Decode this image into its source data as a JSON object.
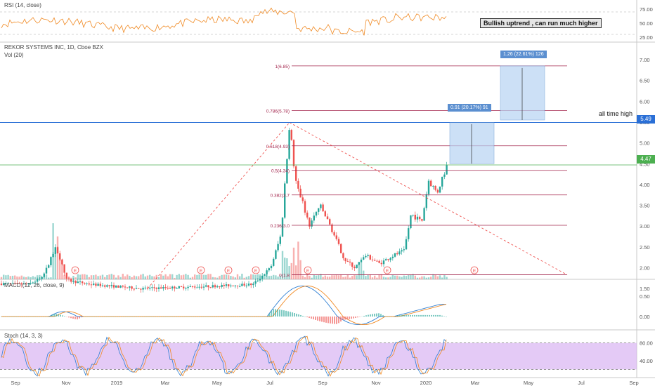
{
  "chart_data": {
    "type": "candlestick",
    "colors": {
      "up": "#26a69a",
      "down": "#ef5350",
      "rsi": "#f08a24",
      "macd": "#2f7fd3",
      "signal": "#f08a24",
      "stoch_k": "#2f7fd3",
      "stoch_d": "#f08a24",
      "fib": "#a3264d",
      "ath": "#2a6fd6",
      "last": "#4caf50",
      "band": "#d9b3f2"
    },
    "price_axis": {
      "ticks": [
        "7.00",
        "6.50",
        "6.00",
        "5.50",
        "5.00",
        "4.50",
        "4.00",
        "3.50",
        "3.00",
        "2.50",
        "2.00",
        "1.50"
      ]
    },
    "rsi_axis": {
      "ticks": [
        "75.00",
        "50.00",
        "25.00"
      ]
    },
    "macd_axis": {
      "ticks": [
        "0.50",
        "0.00"
      ]
    },
    "stoch_axis": {
      "ticks": [
        "80.00",
        "40.00"
      ]
    },
    "time_axis": {
      "ticks": [
        "Sep",
        "Nov",
        "2019",
        "Mar",
        "May",
        "Jul",
        "Sep",
        "Nov",
        "2020",
        "Mar",
        "May",
        "Jul",
        "Sep"
      ]
    },
    "panes": {
      "rsi_title": "RSI (14, close)",
      "price_title": "REKOR SYSTEMS INC, 1D, Cboe BZX",
      "vol_title": "Vol (20)",
      "macd_title": "MACD (12, 26, close, 9)",
      "stoch_title": "Stoch (14, 3, 3)"
    },
    "fib_levels": [
      {
        "label": "1(6.85)",
        "value": 6.85
      },
      {
        "label": "0.786(5.78)",
        "value": 5.78
      },
      {
        "label": "0.618(4.93)",
        "value": 4.93
      },
      {
        "label": "0.5(4.34)",
        "value": 4.34
      },
      {
        "label": "0.382(3.7",
        "value": 3.75
      },
      {
        "label": "0.236(3.0",
        "value": 3.02
      },
      {
        "label": "0(1.8",
        "value": 1.83
      }
    ],
    "annotations": {
      "note": "Bullish uptrend , can run much higher",
      "ath_text": "all time high",
      "ath_value": "5.49",
      "last_value": "4.47",
      "proj1": "0.91 (20.17%) 91",
      "proj2": "1.26 (22.61%) 126",
      "earnings_mark": "E"
    }
  }
}
